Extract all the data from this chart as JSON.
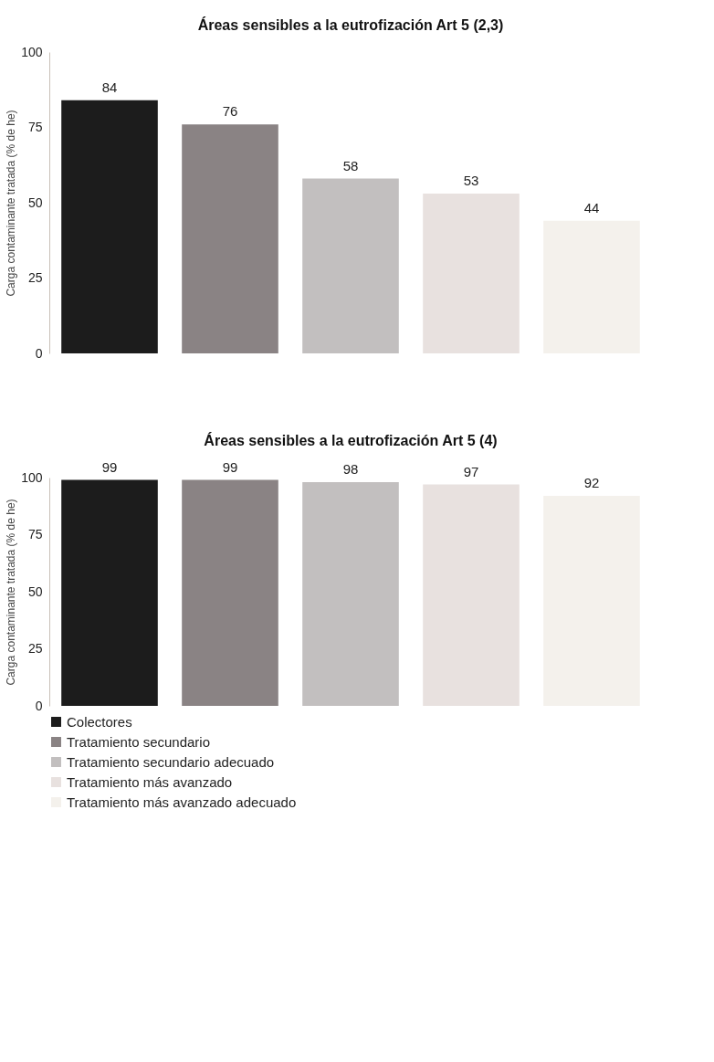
{
  "chart_data": [
    {
      "type": "bar",
      "title": "Áreas sensibles a la eutrofización Art 5 (2,3)",
      "ylabel": "Carga contaminante tratada (% de he)",
      "categories": [
        null
      ],
      "series": [
        {
          "color": "#1c1c1c",
          "values": [
            84
          ]
        },
        {
          "color": "#8a8384",
          "values": [
            76
          ]
        },
        {
          "color": "#c2bfbf",
          "values": [
            58
          ]
        },
        {
          "color": "#e8e1df",
          "values": [
            53
          ]
        },
        {
          "color": "#f4f1ec",
          "values": [
            44
          ]
        }
      ],
      "ylim": [
        0,
        100
      ],
      "yticks": [
        0,
        25,
        50,
        75,
        100
      ],
      "data_labels": true,
      "grid": false,
      "legend": false
    },
    {
      "type": "bar",
      "title": "Áreas sensibles a la eutrofización Art 5 (4)",
      "ylabel": "Carga contaminante tratada (% de he)",
      "categories": [
        null
      ],
      "series": [
        {
          "name": "Colectores",
          "color": "#1c1c1c",
          "values": [
            99
          ]
        },
        {
          "name": "Tratamiento secundario",
          "color": "#8a8384",
          "values": [
            99
          ]
        },
        {
          "name": "Tratamiento secundario adecuado",
          "color": "#c2bfbf",
          "values": [
            98
          ]
        },
        {
          "name": "Tratamiento más avanzado",
          "color": "#e8e1df",
          "values": [
            97
          ]
        },
        {
          "name": "Tratamiento más avanzado adecuado",
          "color": "#f4f1ec",
          "values": [
            92
          ]
        }
      ],
      "ylim": [
        0,
        100
      ],
      "yticks": [
        0,
        25,
        50,
        75,
        100
      ],
      "data_labels": true,
      "grid": false,
      "legend": "bottom"
    }
  ]
}
